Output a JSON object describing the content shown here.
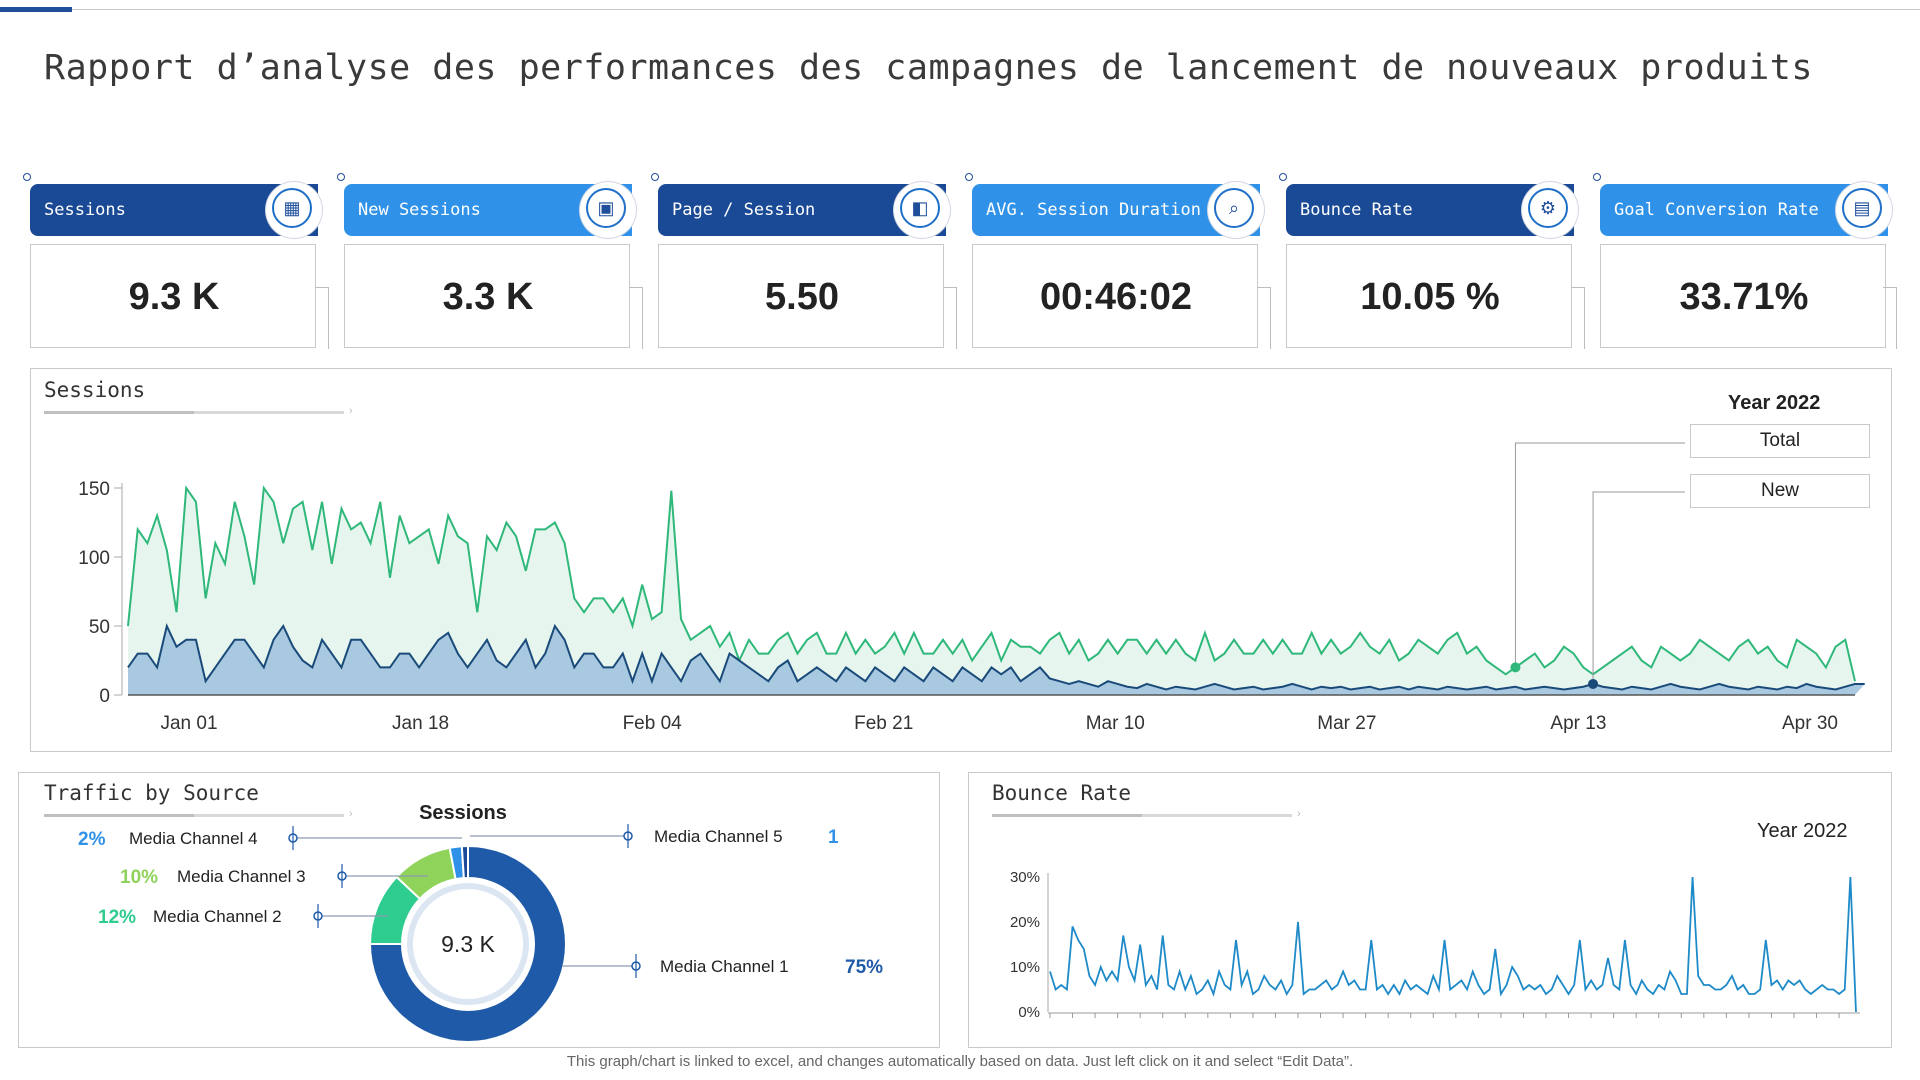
{
  "title": "Rapport d’analyse des performances des campagnes de lancement de nouveaux produits",
  "kpis": [
    {
      "label": "Sessions",
      "value": "9.3 K",
      "color": "#1a4a96",
      "icon": "report-icon"
    },
    {
      "label": "New Sessions",
      "value": "3.3 K",
      "color": "#2f92e8",
      "icon": "analytics-screen-icon"
    },
    {
      "label": "Page / Session",
      "value": "5.50",
      "color": "#1a4a96",
      "icon": "presentation-icon"
    },
    {
      "label": "AVG. Session Duration",
      "value": "00:46:02",
      "color": "#2f92e8",
      "icon": "document-search-icon"
    },
    {
      "label": "Bounce Rate",
      "value": "10.05 %",
      "color": "#1a4a96",
      "icon": "gear-people-icon"
    },
    {
      "label": "Goal Conversion Rate",
      "value": "33.71%",
      "color": "#2f92e8",
      "icon": "clipboard-icon"
    }
  ],
  "sessions_panel": {
    "title": "Sessions",
    "year_label": "Year 2022",
    "legend_total": "Total",
    "legend_new": "New"
  },
  "traffic_panel": {
    "title": "Traffic by Source",
    "donut_title": "Sessions",
    "center_label": "9.3 K"
  },
  "bounce_panel": {
    "title": "Bounce Rate",
    "year_label": "Year 2022"
  },
  "footer": "This graph/chart is linked to excel, and changes automatically based on data. Just left click on it and select “Edit Data”.",
  "colors": {
    "total_line": "#2fb87a",
    "total_fill": "#e6f6ee",
    "new_line": "#1a4a7a",
    "new_fill": "#a9c9e0",
    "bounce_line": "#1e8ac8"
  },
  "chart_data": [
    {
      "type": "area",
      "title": "Sessions",
      "x_ticks": [
        "Jan 01",
        "Jan 18",
        "Feb 04",
        "Feb 21",
        "Mar 10",
        "Mar 27",
        "Apr 13",
        "Apr 30"
      ],
      "ylim": [
        0,
        150
      ],
      "y_ticks": [
        0,
        50,
        100,
        150
      ],
      "grid": false,
      "legend": "top-right",
      "series": [
        {
          "name": "Total",
          "values": [
            50,
            120,
            110,
            130,
            105,
            60,
            150,
            140,
            70,
            110,
            95,
            140,
            115,
            80,
            150,
            140,
            110,
            135,
            140,
            105,
            140,
            95,
            135,
            120,
            125,
            110,
            140,
            85,
            130,
            110,
            115,
            120,
            95,
            130,
            115,
            110,
            60,
            115,
            105,
            125,
            115,
            90,
            120,
            120,
            125,
            110,
            70,
            60,
            70,
            70,
            60,
            70,
            50,
            80,
            55,
            60,
            148,
            55,
            40,
            45,
            50,
            35,
            45,
            25,
            40,
            30,
            30,
            40,
            45,
            30,
            40,
            45,
            30,
            30,
            45,
            30,
            40,
            30,
            35,
            45,
            30,
            45,
            30,
            30,
            40,
            30,
            40,
            25,
            35,
            45,
            25,
            40,
            35,
            35,
            30,
            40,
            45,
            30,
            40,
            25,
            30,
            40,
            30,
            40,
            40,
            30,
            40,
            30,
            40,
            30,
            25,
            45,
            25,
            30,
            40,
            30,
            30,
            40,
            30,
            40,
            30,
            30,
            45,
            30,
            40,
            30,
            35,
            45,
            35,
            30,
            40,
            25,
            30,
            40,
            35,
            30,
            40,
            45,
            30,
            35,
            25,
            20,
            15,
            20,
            25,
            30,
            20,
            25,
            35,
            30,
            20,
            15,
            20,
            25,
            30,
            35,
            25,
            20,
            35,
            30,
            25,
            30,
            40,
            35,
            30,
            25,
            35,
            40,
            30,
            35,
            25,
            20,
            40,
            35,
            30,
            20,
            35,
            40,
            10
          ]
        },
        {
          "name": "New",
          "values": [
            20,
            30,
            30,
            20,
            50,
            35,
            40,
            40,
            10,
            20,
            30,
            40,
            40,
            30,
            20,
            40,
            50,
            35,
            25,
            20,
            40,
            30,
            20,
            40,
            40,
            30,
            20,
            20,
            30,
            30,
            20,
            30,
            40,
            45,
            30,
            20,
            30,
            40,
            25,
            20,
            30,
            40,
            20,
            30,
            50,
            40,
            20,
            30,
            30,
            20,
            20,
            30,
            10,
            30,
            10,
            30,
            20,
            10,
            25,
            30,
            20,
            10,
            30,
            25,
            20,
            15,
            10,
            20,
            25,
            10,
            15,
            20,
            15,
            10,
            20,
            15,
            10,
            20,
            15,
            10,
            20,
            15,
            10,
            20,
            15,
            10,
            20,
            15,
            10,
            20,
            15,
            20,
            10,
            15,
            20,
            12,
            10,
            8,
            10,
            8,
            6,
            10,
            8,
            6,
            5,
            8,
            6,
            4,
            6,
            5,
            4,
            6,
            8,
            6,
            4,
            5,
            6,
            4,
            5,
            6,
            8,
            6,
            4,
            6,
            5,
            6,
            4,
            5,
            6,
            4,
            5,
            6,
            4,
            6,
            5,
            4,
            6,
            5,
            4,
            5,
            6,
            4,
            5,
            6,
            4,
            5,
            6,
            5,
            4,
            5,
            6,
            8,
            6,
            5,
            4,
            6,
            5,
            4,
            6,
            8,
            6,
            5,
            4,
            6,
            8,
            6,
            5,
            4,
            6,
            5,
            4,
            6,
            5,
            8,
            6,
            5,
            4,
            6,
            8,
            8
          ]
        }
      ]
    },
    {
      "type": "pie",
      "title": "Sessions",
      "categories": [
        "Media Channel 1",
        "Media Channel 2",
        "Media Channel 3",
        "Media Channel 4",
        "Media Channel 5"
      ],
      "values": [
        75,
        12,
        10,
        2,
        1
      ],
      "labels": [
        "75%",
        "12%",
        "10%",
        "2%",
        "1"
      ],
      "colors": [
        "#1e5aa8",
        "#2ecc8f",
        "#8fd35a",
        "#2f92e8",
        "#1a4a96"
      ]
    },
    {
      "type": "line",
      "title": "Bounce Rate",
      "ylim": [
        0,
        30
      ],
      "y_ticks": [
        "0%",
        "10%",
        "20%",
        "30%"
      ],
      "series": [
        {
          "name": "Bounce Rate",
          "values": [
            9,
            5,
            6,
            5,
            19,
            16,
            14,
            8,
            6,
            10,
            7,
            9,
            7,
            17,
            10,
            7,
            15,
            6,
            8,
            5,
            17,
            6,
            5,
            9,
            5,
            8,
            4,
            5,
            7,
            4,
            9,
            6,
            5,
            16,
            6,
            9,
            4,
            5,
            8,
            6,
            5,
            7,
            4,
            6,
            20,
            4,
            5,
            5,
            6,
            7,
            5,
            6,
            9,
            6,
            7,
            5,
            5,
            16,
            5,
            6,
            4,
            6,
            4,
            7,
            5,
            6,
            5,
            4,
            8,
            5,
            16,
            5,
            6,
            7,
            5,
            9,
            6,
            4,
            5,
            14,
            4,
            6,
            10,
            8,
            5,
            6,
            5,
            6,
            4,
            5,
            8,
            6,
            4,
            6,
            16,
            5,
            7,
            5,
            6,
            12,
            6,
            5,
            16,
            6,
            4,
            7,
            5,
            4,
            6,
            5,
            9,
            7,
            4,
            4,
            30,
            8,
            6,
            6,
            5,
            5,
            6,
            8,
            5,
            6,
            4,
            4,
            5,
            16,
            6,
            7,
            5,
            7,
            6,
            7,
            5,
            4,
            5,
            6,
            5,
            5,
            4,
            5,
            30,
            0
          ]
        }
      ]
    }
  ]
}
